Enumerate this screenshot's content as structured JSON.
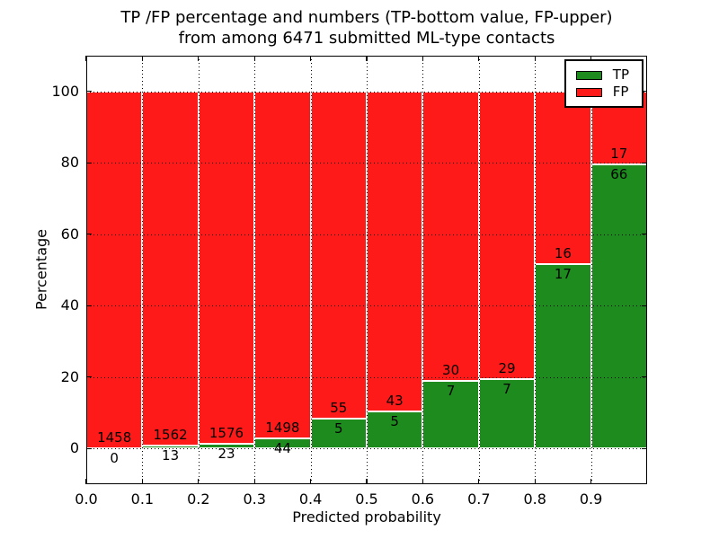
{
  "chart_data": {
    "type": "bar",
    "stacked": true,
    "title_line1": "TP /FP percentage and numbers (TP-bottom value, FP-upper)",
    "title_line2": "from among 6471 submitted ML-type contacts",
    "xlabel": "Predicted probability",
    "ylabel": "Percentage",
    "xlim": [
      0,
      1
    ],
    "ylim": [
      -10,
      110
    ],
    "bin_width": 0.1,
    "bin_left_edges": [
      0.0,
      0.1,
      0.2,
      0.3,
      0.4,
      0.5,
      0.6,
      0.7,
      0.8,
      0.9
    ],
    "x_tick_values": [
      0.0,
      0.1,
      0.2,
      0.3,
      0.4,
      0.5,
      0.6,
      0.7,
      0.8,
      0.9
    ],
    "x_tick_labels": [
      "0.0",
      "0.1",
      "0.2",
      "0.3",
      "0.4",
      "0.5",
      "0.6",
      "0.7",
      "0.8",
      "0.9"
    ],
    "y_tick_values": [
      0,
      20,
      40,
      60,
      80,
      100
    ],
    "y_tick_labels": [
      "0",
      "20",
      "40",
      "60",
      "80",
      "100"
    ],
    "grid": true,
    "grid_style": "dotted",
    "series": [
      {
        "name": "TP",
        "color": "#1e8b1e",
        "counts": [
          0,
          13,
          23,
          44,
          5,
          5,
          7,
          7,
          17,
          66
        ],
        "percent": [
          0,
          0.83,
          1.44,
          2.85,
          8.33,
          10.42,
          18.92,
          19.44,
          51.52,
          79.52
        ]
      },
      {
        "name": "FP",
        "color": "#ff1a1a",
        "counts": [
          1458,
          1562,
          1576,
          1498,
          55,
          43,
          30,
          29,
          16,
          17
        ],
        "percent": [
          100,
          99.17,
          98.56,
          97.15,
          91.67,
          89.58,
          81.08,
          80.56,
          48.48,
          20.48
        ]
      }
    ],
    "legend": {
      "position": "upper right",
      "entries": [
        {
          "label": "TP",
          "color": "#1e8b1e"
        },
        {
          "label": "FP",
          "color": "#ff1a1a"
        }
      ]
    }
  }
}
